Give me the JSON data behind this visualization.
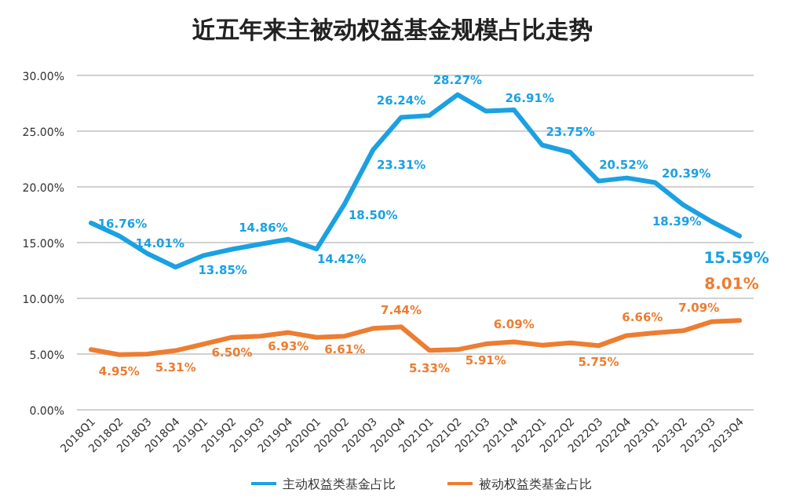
{
  "chart_data": {
    "type": "line",
    "title": "近五年来主被动权益基金规模占比走势",
    "categories": [
      "2018Q1",
      "2018Q2",
      "2018Q3",
      "2018Q4",
      "2019Q1",
      "2019Q2",
      "2019Q3",
      "2019Q4",
      "2020Q1",
      "2020Q2",
      "2020Q3",
      "2020Q4",
      "2021Q1",
      "2021Q2",
      "2021Q3",
      "2021Q4",
      "2022Q1",
      "2022Q2",
      "2022Q3",
      "2022Q4",
      "2023Q1",
      "2023Q2",
      "2023Q3",
      "2023Q4"
    ],
    "series": [
      {
        "name": "主动权益类基金占比",
        "color": "#1ba1e2",
        "values": [
          16.76,
          15.6,
          14.01,
          12.8,
          13.85,
          14.4,
          14.86,
          15.3,
          14.42,
          18.5,
          23.31,
          26.24,
          26.4,
          28.27,
          26.8,
          26.91,
          23.75,
          23.1,
          20.52,
          20.8,
          20.39,
          18.39,
          16.9,
          15.59
        ],
        "value_labels": [
          "16.76%",
          null,
          "14.01%",
          null,
          "13.85%",
          null,
          "14.86%",
          null,
          "14.42%",
          "18.50%",
          "23.31%",
          "26.24%",
          null,
          "28.27%",
          null,
          "26.91%",
          "23.75%",
          null,
          "20.52%",
          null,
          "20.39%",
          "18.39%",
          null,
          "15.59%"
        ]
      },
      {
        "name": "被动权益类基金占比",
        "color": "#ed7d31",
        "values": [
          5.4,
          4.95,
          5.0,
          5.31,
          5.9,
          6.5,
          6.6,
          6.93,
          6.5,
          6.61,
          7.3,
          7.44,
          5.33,
          5.4,
          5.91,
          6.09,
          5.8,
          6.0,
          5.75,
          6.66,
          6.9,
          7.09,
          7.9,
          8.01
        ],
        "value_labels": [
          null,
          "4.95%",
          null,
          "5.31%",
          null,
          "6.50%",
          null,
          "6.93%",
          null,
          "6.61%",
          null,
          "7.44%",
          "5.33%",
          null,
          "5.91%",
          "6.09%",
          null,
          null,
          "5.75%",
          "6.66%",
          null,
          "7.09%",
          null,
          "8.01%"
        ]
      }
    ],
    "ylim": [
      0,
      30
    ],
    "yticks": [
      {
        "value": 0,
        "label": "0.00%"
      },
      {
        "value": 5,
        "label": "5.00%"
      },
      {
        "value": 10,
        "label": "10.00%"
      },
      {
        "value": 15,
        "label": "15.00%"
      },
      {
        "value": 20,
        "label": "20.00%"
      },
      {
        "value": 25,
        "label": "25.00%"
      },
      {
        "value": 30,
        "label": "30.00%"
      }
    ],
    "grid": "y",
    "legend": "bottom",
    "marker": "none",
    "line_style": "solid"
  }
}
